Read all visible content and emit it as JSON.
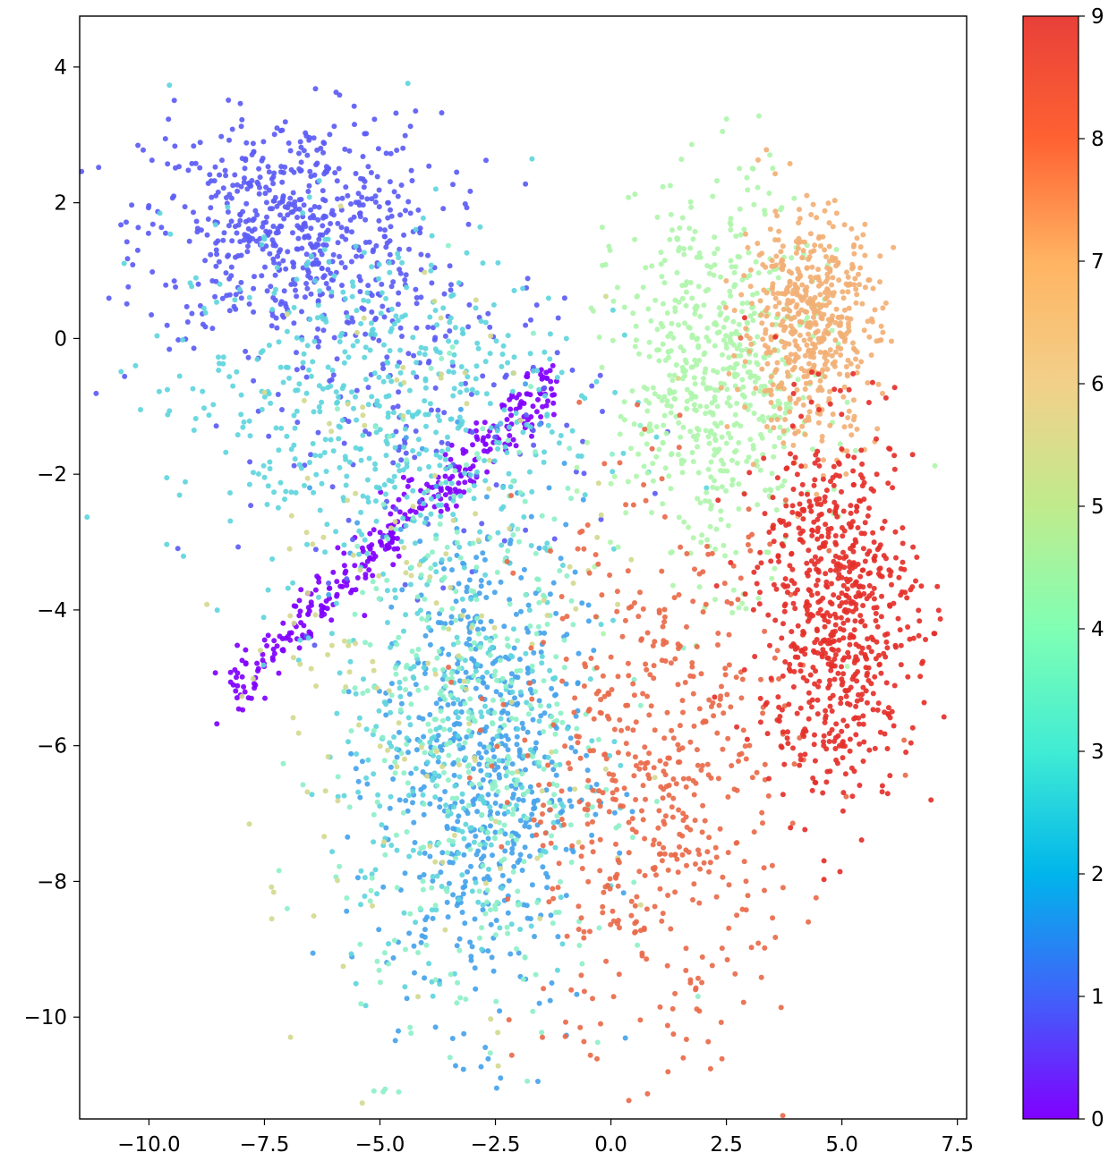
{
  "chart_data": {
    "type": "scatter",
    "title": "",
    "xlabel": "",
    "ylabel": "",
    "xlim": [
      -11.5,
      7.7
    ],
    "ylim": [
      -11.5,
      4.75
    ],
    "grid": false,
    "x_ticks": [
      -10.0,
      -7.5,
      -5.0,
      -2.5,
      0.0,
      2.5,
      5.0,
      7.5
    ],
    "x_tick_labels": [
      "−10.0",
      "−7.5",
      "−5.0",
      "−2.5",
      "0.0",
      "2.5",
      "5.0",
      "7.5"
    ],
    "y_ticks": [
      4,
      2,
      0,
      -2,
      -4,
      -6,
      -8,
      -10
    ],
    "y_tick_labels": [
      "4",
      "2",
      "0",
      "−2",
      "−4",
      "−6",
      "−8",
      "−10"
    ],
    "colormap": "rainbow",
    "colorbar": {
      "range": [
        0,
        9
      ],
      "ticks": [
        0,
        1,
        2,
        3,
        4,
        5,
        6,
        7,
        8,
        9
      ],
      "tick_labels": [
        "0",
        "1",
        "2",
        "3",
        "4",
        "5",
        "6",
        "7",
        "8",
        "9"
      ],
      "colors": [
        "#8000ff",
        "#4062fa",
        "#00b5eb",
        "#40ecd4",
        "#80ffb4",
        "#c0eb8d",
        "#ffb462",
        "#ff6232",
        "#ff0000"
      ]
    },
    "clusters": [
      {
        "class": 0,
        "shape": "line",
        "from": [
          -8.3,
          -5.2
        ],
        "to": [
          -1.2,
          -0.6
        ],
        "spread": 0.2,
        "count": 340,
        "color": "#8000ff"
      },
      {
        "class": 1,
        "center": [
          -6.9,
          1.6
        ],
        "spread": [
          1.6,
          0.85
        ],
        "count": 620,
        "color": "#5c5cf5"
      },
      {
        "class": 1,
        "center": [
          -4.0,
          -1.0
        ],
        "spread": [
          1.9,
          1.2
        ],
        "count": 160,
        "color": "#5c5cf5"
      },
      {
        "class": 2,
        "center": [
          -2.8,
          -6.2
        ],
        "spread": [
          1.1,
          1.9
        ],
        "count": 620,
        "color": "#45a3eb"
      },
      {
        "class": 3,
        "center": [
          -5.2,
          -0.9
        ],
        "spread": [
          2.2,
          1.3
        ],
        "count": 540,
        "color": "#5fd5dd"
      },
      {
        "class": 3,
        "center": [
          -3.4,
          -5.8
        ],
        "spread": [
          1.4,
          1.9
        ],
        "count": 300,
        "color": "#5fd5dd"
      },
      {
        "class": 4,
        "center": [
          -2.9,
          -5.9
        ],
        "spread": [
          1.5,
          2.2
        ],
        "count": 420,
        "color": "#8ef0c8"
      },
      {
        "class": 5,
        "center": [
          2.3,
          -0.6
        ],
        "spread": [
          1.1,
          1.4
        ],
        "count": 620,
        "color": "#b0f5ad"
      },
      {
        "class": 6,
        "center": [
          -4.0,
          -4.2
        ],
        "spread": [
          2.2,
          2.6
        ],
        "count": 160,
        "color": "#d4d98f"
      },
      {
        "class": 7,
        "center": [
          4.3,
          0.2
        ],
        "spread": [
          0.75,
          0.85
        ],
        "count": 520,
        "color": "#f2b075"
      },
      {
        "class": 8,
        "center": [
          1.0,
          -6.6
        ],
        "spread": [
          1.5,
          2.0
        ],
        "count": 560,
        "color": "#e96a4a"
      },
      {
        "class": 9,
        "center": [
          4.9,
          -4.0
        ],
        "spread": [
          0.85,
          1.35
        ],
        "count": 720,
        "color": "#e5302a"
      }
    ]
  }
}
